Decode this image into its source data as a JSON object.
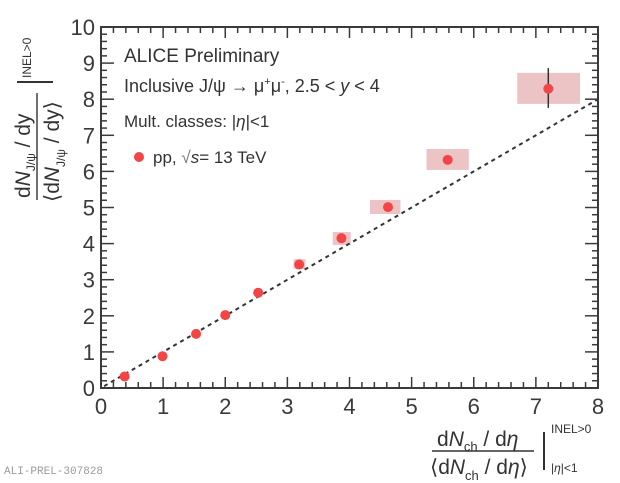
{
  "chart_data": {
    "type": "scatter",
    "title": "",
    "annotations": [
      "ALICE Preliminary",
      "Inclusive J/ψ → μ⁺μ⁻, 2.5 < y < 4",
      "Mult. classes: |η|<1"
    ],
    "xlabel": "dN_ch / dη / ⟨dN_ch / dη⟩ |_{|η|<1}^{INEL>0}",
    "ylabel": "dN_J/ψ / dy / ⟨dN_J/ψ / dy⟩ |^{INEL>0}",
    "xlim": [
      0,
      8
    ],
    "ylim": [
      0,
      10
    ],
    "xticks": [
      0,
      1,
      2,
      3,
      4,
      5,
      6,
      7,
      8
    ],
    "yticks": [
      0,
      1,
      2,
      3,
      4,
      5,
      6,
      7,
      8,
      9,
      10
    ],
    "legend": {
      "placement": "top-left",
      "entries": [
        {
          "label": "pp, √s= 13 TeV",
          "marker": "circle",
          "color": "#f44545"
        }
      ]
    },
    "series": [
      {
        "name": "pp, √s= 13 TeV",
        "color": "#f44545",
        "syst_color": "#ecc4c6",
        "points": [
          {
            "x": 0.38,
            "y": 0.32,
            "sys_x": [
              0.38,
              0.38
            ],
            "sys_y": [
              0.32,
              0.32
            ]
          },
          {
            "x": 0.99,
            "y": 0.88,
            "sys_x": [
              0.99,
              0.99
            ],
            "sys_y": [
              0.88,
              0.88
            ]
          },
          {
            "x": 1.53,
            "y": 1.5,
            "sys_x": [
              1.53,
              1.53
            ],
            "sys_y": [
              1.5,
              1.5
            ]
          },
          {
            "x": 2.0,
            "y": 2.02,
            "sys_x": [
              2.0,
              2.0
            ],
            "sys_y": [
              2.02,
              2.02
            ]
          },
          {
            "x": 2.53,
            "y": 2.64,
            "sys_x": [
              2.53,
              2.53
            ],
            "sys_y": [
              2.64,
              2.64
            ]
          },
          {
            "x": 3.19,
            "y": 3.42,
            "sys_x": [
              3.1,
              3.29
            ],
            "sys_y": [
              3.3,
              3.57
            ]
          },
          {
            "x": 3.87,
            "y": 4.15,
            "sys_x": [
              3.73,
              4.02
            ],
            "sys_y": [
              3.96,
              4.32
            ]
          },
          {
            "x": 4.62,
            "y": 5.01,
            "sys_x": [
              4.33,
              4.82
            ],
            "sys_y": [
              4.82,
              5.21
            ]
          },
          {
            "x": 5.58,
            "y": 6.32,
            "sys_x": [
              5.24,
              5.92
            ],
            "sys_y": [
              6.04,
              6.62
            ]
          },
          {
            "x": 7.2,
            "y": 8.29,
            "sys_x": [
              6.7,
              7.71
            ],
            "sys_y": [
              7.87,
              8.73
            ],
            "stat_y": [
              7.76,
              8.86
            ]
          }
        ]
      }
    ],
    "reference_line": {
      "label": "y = x",
      "style": "dashed",
      "x": [
        0.05,
        8.0
      ],
      "y": [
        0.05,
        8.0
      ]
    },
    "grid": false
  },
  "labels": {
    "alice": "ALICE Preliminary",
    "incl_pre": "Inclusive J/ψ → μ",
    "incl_sup1": "+",
    "incl_mid": "μ",
    "incl_sup2": "-",
    "incl_post": ", 2.5 < ",
    "incl_y": "y",
    "incl_end": " < 4",
    "mult_pre": "Mult. classes: |",
    "mult_eta": "η",
    "mult_post": "|<1",
    "legend_pre": "pp, ",
    "legend_sqrt": "√",
    "legend_s": "s",
    "legend_post": "= 13 TeV",
    "x_num_d": "d",
    "x_num_N": "N",
    "x_num_ch": "ch",
    "x_num_rest": " / d",
    "x_eta": "η",
    "x_den_open": "⟨d",
    "x_den_close": "⟩",
    "x_sup": "INEL>0",
    "x_sub": "|η|<1",
    "y_num_d": "d",
    "y_num_N": "N",
    "y_sub": "J/ψ",
    "y_num_rest": " / dy",
    "y_den_open": "⟨d",
    "y_den_close": " / dy⟩",
    "y_sup": "INEL>0",
    "watermark": "ALI-PREL-307828"
  }
}
